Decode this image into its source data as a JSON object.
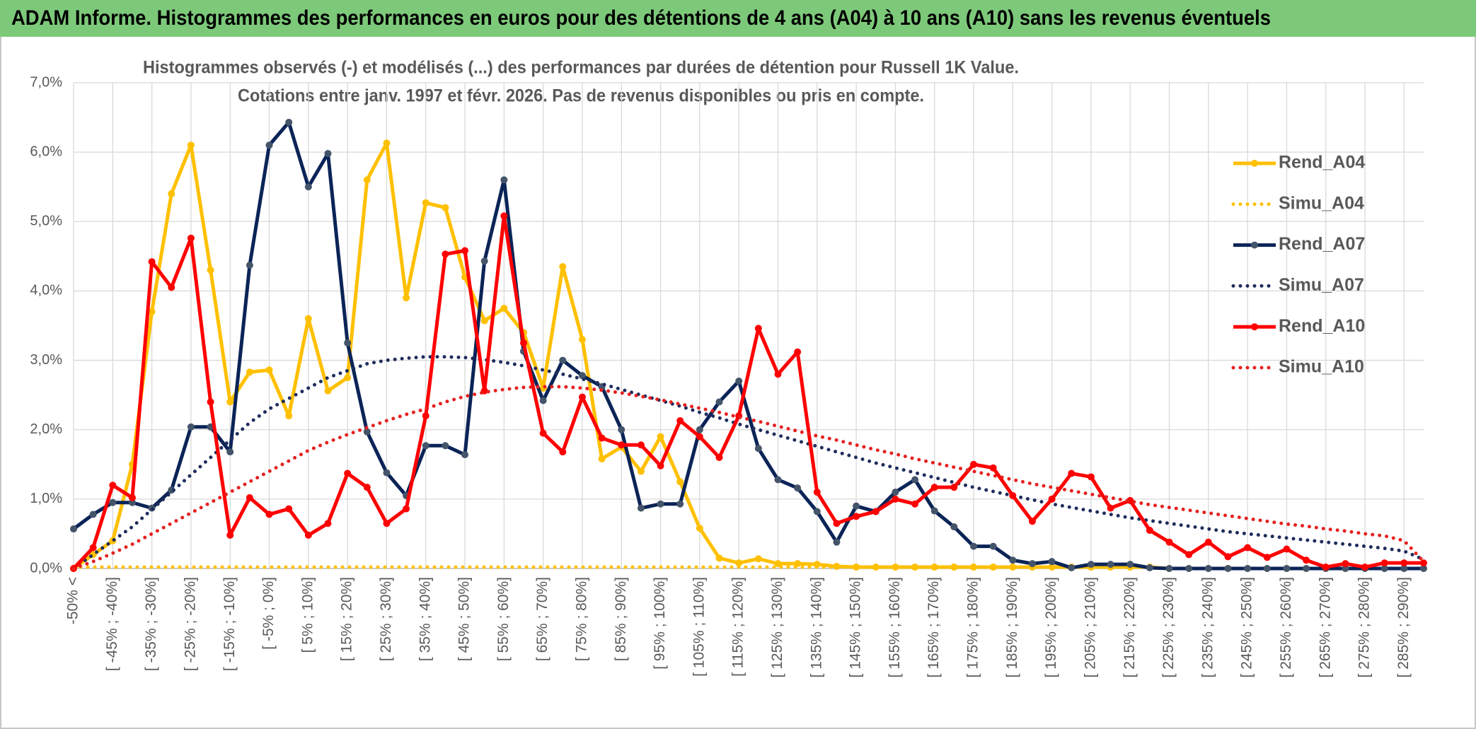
{
  "header": {
    "title": "ADAM Informe. Histogrammes des performances en euros pour des détentions de 4 ans (A04) à 10 ans (A10) sans les revenus éventuels"
  },
  "chart_data": {
    "type": "line",
    "title": [
      "Histogrammes observés (-) et modélisés (...) des performances par durées de détention pour Russell 1K Value.",
      "Cotations entre janv. 1997 et févr. 2026. Pas de revenus disponibles ou pris en compte."
    ],
    "categories": [
      "-50% <",
      null,
      "[ -45% ; -40%]",
      null,
      "[ -35% ; -30%]",
      null,
      "[ -25% ; -20%]",
      null,
      "[ -15% ; -10%]",
      null,
      "[ -5% ; 0%]",
      null,
      "[ 5% ; 10%]",
      null,
      "[ 15% ; 20%]",
      null,
      "[ 25% ; 30%]",
      null,
      "[ 35% ; 40%]",
      null,
      "[ 45% ; 50%]",
      null,
      "[ 55% ; 60%]",
      null,
      "[ 65% ; 70%]",
      null,
      "[ 75% ; 80%]",
      null,
      "[ 85% ; 90%]",
      null,
      "[ 95% ; 100%]",
      null,
      "[ 105% ; 110%]",
      null,
      "[ 115% ; 120%]",
      null,
      "[ 125% ; 130%]",
      null,
      "[ 135% ; 140%]",
      null,
      "[ 145% ; 150%]",
      null,
      "[ 155% ; 160%]",
      null,
      "[ 165% ; 170%]",
      null,
      "[ 175% ; 180%]",
      null,
      "[ 185% ; 190%]",
      null,
      "[ 195% ; 200%]",
      null,
      "[ 205% ; 210%]",
      null,
      "[ 215% ; 220%]",
      null,
      "[ 225% ; 230%]",
      null,
      "[ 235% ; 240%]",
      null,
      "[ 245% ; 250%]",
      null,
      "[ 255% ; 260%]",
      null,
      "[ 265% ; 270%]",
      null,
      "[ 275% ; 280%]",
      null,
      "[ 285% ; 290%]",
      null
    ],
    "series": [
      {
        "name": "Rend_A04",
        "color": "#ffc000",
        "line_style": "solid",
        "marker": true,
        "values": [
          0,
          0.2,
          0.4,
          1.5,
          3.7,
          5.4,
          6.1,
          4.3,
          2.4,
          2.83,
          2.86,
          2.2,
          3.6,
          2.56,
          2.75,
          5.6,
          6.13,
          3.9,
          5.27,
          5.2,
          4.2,
          3.57,
          3.75,
          3.4,
          2.6,
          4.35,
          3.3,
          1.58,
          1.75,
          1.4,
          1.9,
          1.25,
          0.58,
          0.15,
          0.08,
          0.14,
          0.07,
          0.07,
          0.06,
          0.03,
          0.02,
          0.02,
          0.02,
          0.02,
          0.02,
          0.02,
          0.02,
          0.02,
          0.02,
          0.02,
          0.02,
          0.02,
          0.02,
          0.02,
          0.02,
          0.02,
          0,
          0,
          0,
          0,
          0,
          0,
          0,
          0,
          0,
          0,
          0,
          0,
          0,
          0
        ]
      },
      {
        "name": "Simu_A04",
        "color": "#ffc000",
        "line_style": "dotted",
        "marker": false,
        "values": [
          0.02,
          0.02,
          0.02,
          0.02,
          0.02,
          0.02,
          0.02,
          0.02,
          0.02,
          0.02,
          0.02,
          0.02,
          0.02,
          0.02,
          0.02,
          0.02,
          0.02,
          0.02,
          0.02,
          0.02,
          0.02,
          0.02,
          0.02,
          0.02,
          0.02,
          0.02,
          0.02,
          0.02,
          0.02,
          0.02,
          0.02,
          0.02,
          0.02,
          0.02,
          0.02,
          0.02,
          0.02,
          0.02,
          0.02,
          0.02,
          0.02,
          0.02,
          0.02,
          0.02,
          0.02,
          0.02,
          0.02,
          0.02,
          0.02,
          0.02,
          0.02,
          0.02,
          0.02,
          0.02,
          0.02,
          0.02,
          null,
          null,
          null,
          null,
          null,
          null,
          null,
          null,
          null,
          null,
          null,
          null,
          null,
          null
        ]
      },
      {
        "name": "Rend_A07",
        "color": "#0b2457",
        "line_style": "solid",
        "marker": true,
        "values": [
          0.57,
          0.78,
          0.95,
          0.95,
          0.87,
          1.13,
          2.04,
          2.04,
          1.68,
          4.37,
          6.1,
          6.43,
          5.5,
          5.98,
          3.25,
          1.97,
          1.38,
          1.05,
          1.77,
          1.77,
          1.64,
          4.43,
          5.6,
          3.13,
          2.42,
          3.0,
          2.78,
          2.62,
          2.0,
          0.87,
          0.93,
          0.93,
          2.0,
          2.4,
          2.7,
          1.73,
          1.28,
          1.16,
          0.82,
          0.38,
          0.9,
          0.82,
          1.1,
          1.28,
          0.83,
          0.6,
          0.32,
          0.32,
          0.12,
          0.07,
          0.1,
          0.01,
          0.06,
          0.06,
          0.06,
          0.01,
          0,
          0,
          0,
          0,
          0,
          0,
          0,
          0,
          0,
          0,
          0,
          0,
          0,
          0
        ]
      },
      {
        "name": "Simu_A07",
        "color": "#1f2d5c",
        "line_style": "dotted",
        "marker": false,
        "values": [
          0,
          0.2,
          0.4,
          0.6,
          0.85,
          1.1,
          1.35,
          1.6,
          1.85,
          2.1,
          2.3,
          2.45,
          2.6,
          2.75,
          2.85,
          2.95,
          3.0,
          3.03,
          3.05,
          3.05,
          3.04,
          3.01,
          2.97,
          2.92,
          2.86,
          2.8,
          2.73,
          2.66,
          2.58,
          2.5,
          2.42,
          2.34,
          2.25,
          2.17,
          2.08,
          2.0,
          1.92,
          1.84,
          1.76,
          1.68,
          1.6,
          1.52,
          1.45,
          1.38,
          1.31,
          1.24,
          1.17,
          1.11,
          1.05,
          0.99,
          0.93,
          0.88,
          0.83,
          0.78,
          0.73,
          0.69,
          0.65,
          0.61,
          0.57,
          0.53,
          0.5,
          0.47,
          0.44,
          0.41,
          0.38,
          0.35,
          0.32,
          0.29,
          0.25,
          0.13
        ]
      },
      {
        "name": "Rend_A10",
        "color": "#ff0000",
        "line_style": "solid",
        "marker": true,
        "values": [
          0,
          0.3,
          1.2,
          1.02,
          4.42,
          4.05,
          4.76,
          2.4,
          0.48,
          1.02,
          0.78,
          0.86,
          0.48,
          0.65,
          1.37,
          1.17,
          0.65,
          0.86,
          2.2,
          4.53,
          4.58,
          2.56,
          5.08,
          3.25,
          1.95,
          1.68,
          2.47,
          1.88,
          1.78,
          1.78,
          1.48,
          2.13,
          1.9,
          1.6,
          2.2,
          3.46,
          2.8,
          3.12,
          1.1,
          0.65,
          0.75,
          0.82,
          1.0,
          0.93,
          1.17,
          1.17,
          1.5,
          1.45,
          1.05,
          0.68,
          1.0,
          1.37,
          1.32,
          0.87,
          0.98,
          0.55,
          0.38,
          0.2,
          0.38,
          0.17,
          0.3,
          0.16,
          0.28,
          0.12,
          0.02,
          0.07,
          0.02,
          0.08,
          0.08,
          0.08
        ]
      },
      {
        "name": "Simu_A10",
        "color": "#e52020",
        "line_style": "dotted",
        "marker": false,
        "values": [
          0,
          0.1,
          0.22,
          0.35,
          0.5,
          0.65,
          0.8,
          0.95,
          1.1,
          1.25,
          1.4,
          1.55,
          1.7,
          1.82,
          1.93,
          2.03,
          2.13,
          2.22,
          2.3,
          2.4,
          2.48,
          2.54,
          2.58,
          2.61,
          2.62,
          2.62,
          2.6,
          2.57,
          2.53,
          2.48,
          2.43,
          2.37,
          2.31,
          2.25,
          2.18,
          2.12,
          2.05,
          1.98,
          1.91,
          1.85,
          1.78,
          1.71,
          1.65,
          1.58,
          1.52,
          1.46,
          1.4,
          1.34,
          1.28,
          1.22,
          1.17,
          1.12,
          1.07,
          1.02,
          0.97,
          0.92,
          0.88,
          0.84,
          0.8,
          0.76,
          0.72,
          0.68,
          0.64,
          0.61,
          0.57,
          0.54,
          0.5,
          0.47,
          0.4,
          0.1
        ]
      }
    ],
    "ylim": [
      0,
      7
    ],
    "yticks": [
      {
        "value": 0,
        "label": "0,0%"
      },
      {
        "value": 1,
        "label": "1,0%"
      },
      {
        "value": 2,
        "label": "2,0%"
      },
      {
        "value": 3,
        "label": "3,0%"
      },
      {
        "value": 4,
        "label": "4,0%"
      },
      {
        "value": 5,
        "label": "5,0%"
      },
      {
        "value": 6,
        "label": "6,0%"
      },
      {
        "value": 7,
        "label": "7,0%"
      }
    ],
    "grid": true,
    "legend": "right"
  }
}
